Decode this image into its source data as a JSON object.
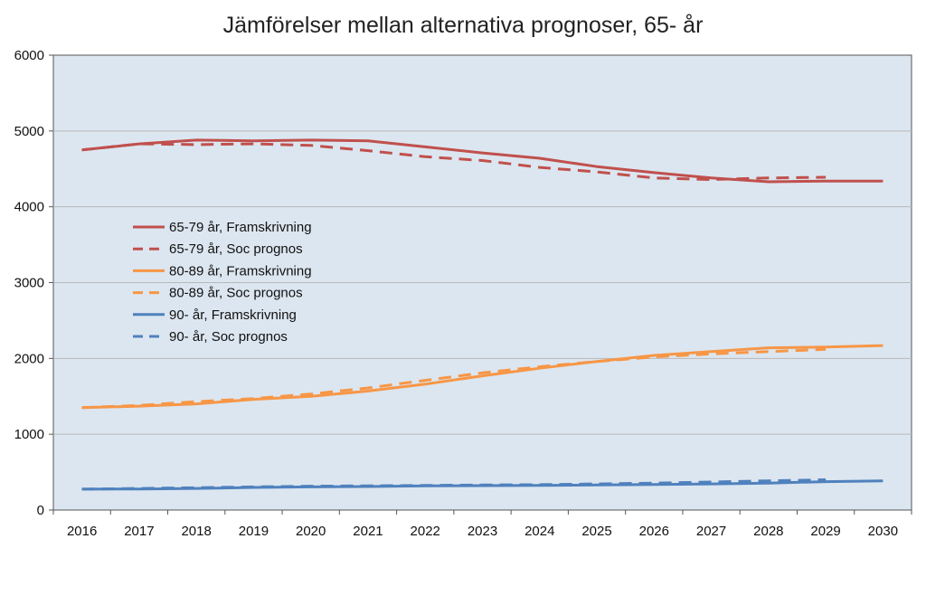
{
  "chart_data": {
    "type": "line",
    "title": "Jämförelser mellan alternativa prognoser, 65- år",
    "xlabel": "",
    "ylabel": "",
    "categories": [
      "2016",
      "2017",
      "2018",
      "2019",
      "2020",
      "2021",
      "2022",
      "2023",
      "2024",
      "2025",
      "2026",
      "2027",
      "2028",
      "2029",
      "2030"
    ],
    "ylim": [
      0,
      6000
    ],
    "yticks": [
      "0",
      "1000",
      "2000",
      "3000",
      "4000",
      "5000",
      "6000"
    ],
    "ytick_values": [
      0,
      1000,
      2000,
      3000,
      4000,
      5000,
      6000
    ],
    "grid": true,
    "legend_position": "left-center",
    "plot_background": "#dce6f0",
    "series": [
      {
        "name": "65-79 år, Framskrivning",
        "color": "#c0504d",
        "dash": "solid",
        "values": [
          4750,
          4830,
          4880,
          4870,
          4880,
          4870,
          4790,
          4710,
          4640,
          4530,
          4450,
          4380,
          4330,
          4340,
          4340
        ]
      },
      {
        "name": "65-79 år, Soc prognos",
        "color": "#c0504d",
        "dash": "dashed",
        "values": [
          4750,
          4830,
          4820,
          4830,
          4810,
          4740,
          4660,
          4610,
          4520,
          4460,
          4380,
          4360,
          4380,
          4390,
          null
        ]
      },
      {
        "name": "80-89 år, Framskrivning",
        "color": "#f79646",
        "dash": "solid",
        "values": [
          1350,
          1370,
          1400,
          1460,
          1500,
          1570,
          1660,
          1770,
          1870,
          1960,
          2040,
          2090,
          2140,
          2150,
          2170
        ]
      },
      {
        "name": "80-89 år, Soc prognos",
        "color": "#f79646",
        "dash": "dashed",
        "values": [
          1350,
          1380,
          1430,
          1470,
          1530,
          1610,
          1710,
          1810,
          1890,
          1960,
          2020,
          2060,
          2090,
          2120,
          null
        ]
      },
      {
        "name": "90- år, Framskrivning",
        "color": "#4f81bd",
        "dash": "solid",
        "values": [
          275,
          278,
          285,
          298,
          305,
          310,
          318,
          322,
          325,
          330,
          337,
          345,
          355,
          375,
          385
        ]
      },
      {
        "name": "90- år, Soc prognos",
        "color": "#4f81bd",
        "dash": "dashed",
        "values": [
          275,
          285,
          295,
          305,
          315,
          320,
          325,
          330,
          335,
          345,
          355,
          370,
          385,
          400,
          null
        ]
      }
    ]
  }
}
